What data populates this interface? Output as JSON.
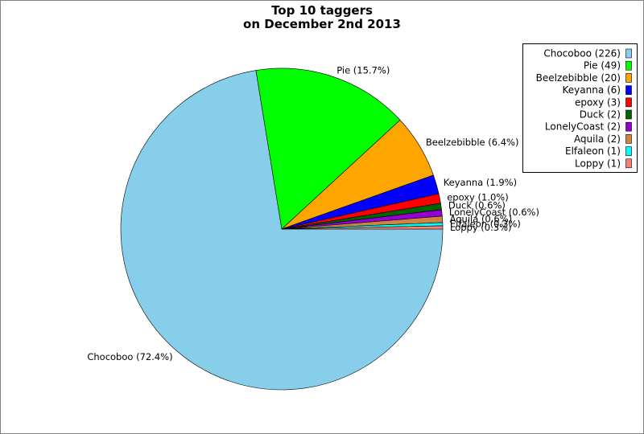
{
  "chart_data": {
    "type": "pie",
    "title": [
      "Top 10 taggers",
      "on December 2nd 2013"
    ],
    "slices": [
      {
        "name": "Chocoboo",
        "value": 226,
        "legend": "Chocoboo (226)",
        "label": "Chocoboo (72.4%)",
        "color": "#87ceeb"
      },
      {
        "name": "Pie",
        "value": 49,
        "legend": "Pie (49)",
        "label": "Pie (15.7%)",
        "color": "#00ff00"
      },
      {
        "name": "Beelzebibble",
        "value": 20,
        "legend": "Beelzebibble (20)",
        "label": "Beelzebibble (6.4%)",
        "color": "#ffa500"
      },
      {
        "name": "Keyanna",
        "value": 6,
        "legend": "Keyanna (6)",
        "label": "Keyanna (1.9%)",
        "color": "#0000ff"
      },
      {
        "name": "epoxy",
        "value": 3,
        "legend": "epoxy (3)",
        "label": "epoxy (1.0%)",
        "color": "#ff0000"
      },
      {
        "name": "Duck",
        "value": 2,
        "legend": "Duck (2)",
        "label": "Duck (0.6%)",
        "color": "#006400"
      },
      {
        "name": "LonelyCoast",
        "value": 2,
        "legend": "LonelyCoast (2)",
        "label": "LonelyCoast (0.6%)",
        "color": "#9400d3"
      },
      {
        "name": "Aquila",
        "value": 2,
        "legend": "Aquila (2)",
        "label": "Aquila (0.6%)",
        "color": "#cd853f"
      },
      {
        "name": "Elfaleon",
        "value": 1,
        "legend": "Elfaleon (1)",
        "label": "Elfaleon (0.3%)",
        "color": "#00ffff"
      },
      {
        "name": "Loppy",
        "value": 1,
        "legend": "Loppy (1)",
        "label": "Loppy (0.3%)",
        "color": "#fa8072"
      }
    ],
    "legend_position": "top-right"
  }
}
